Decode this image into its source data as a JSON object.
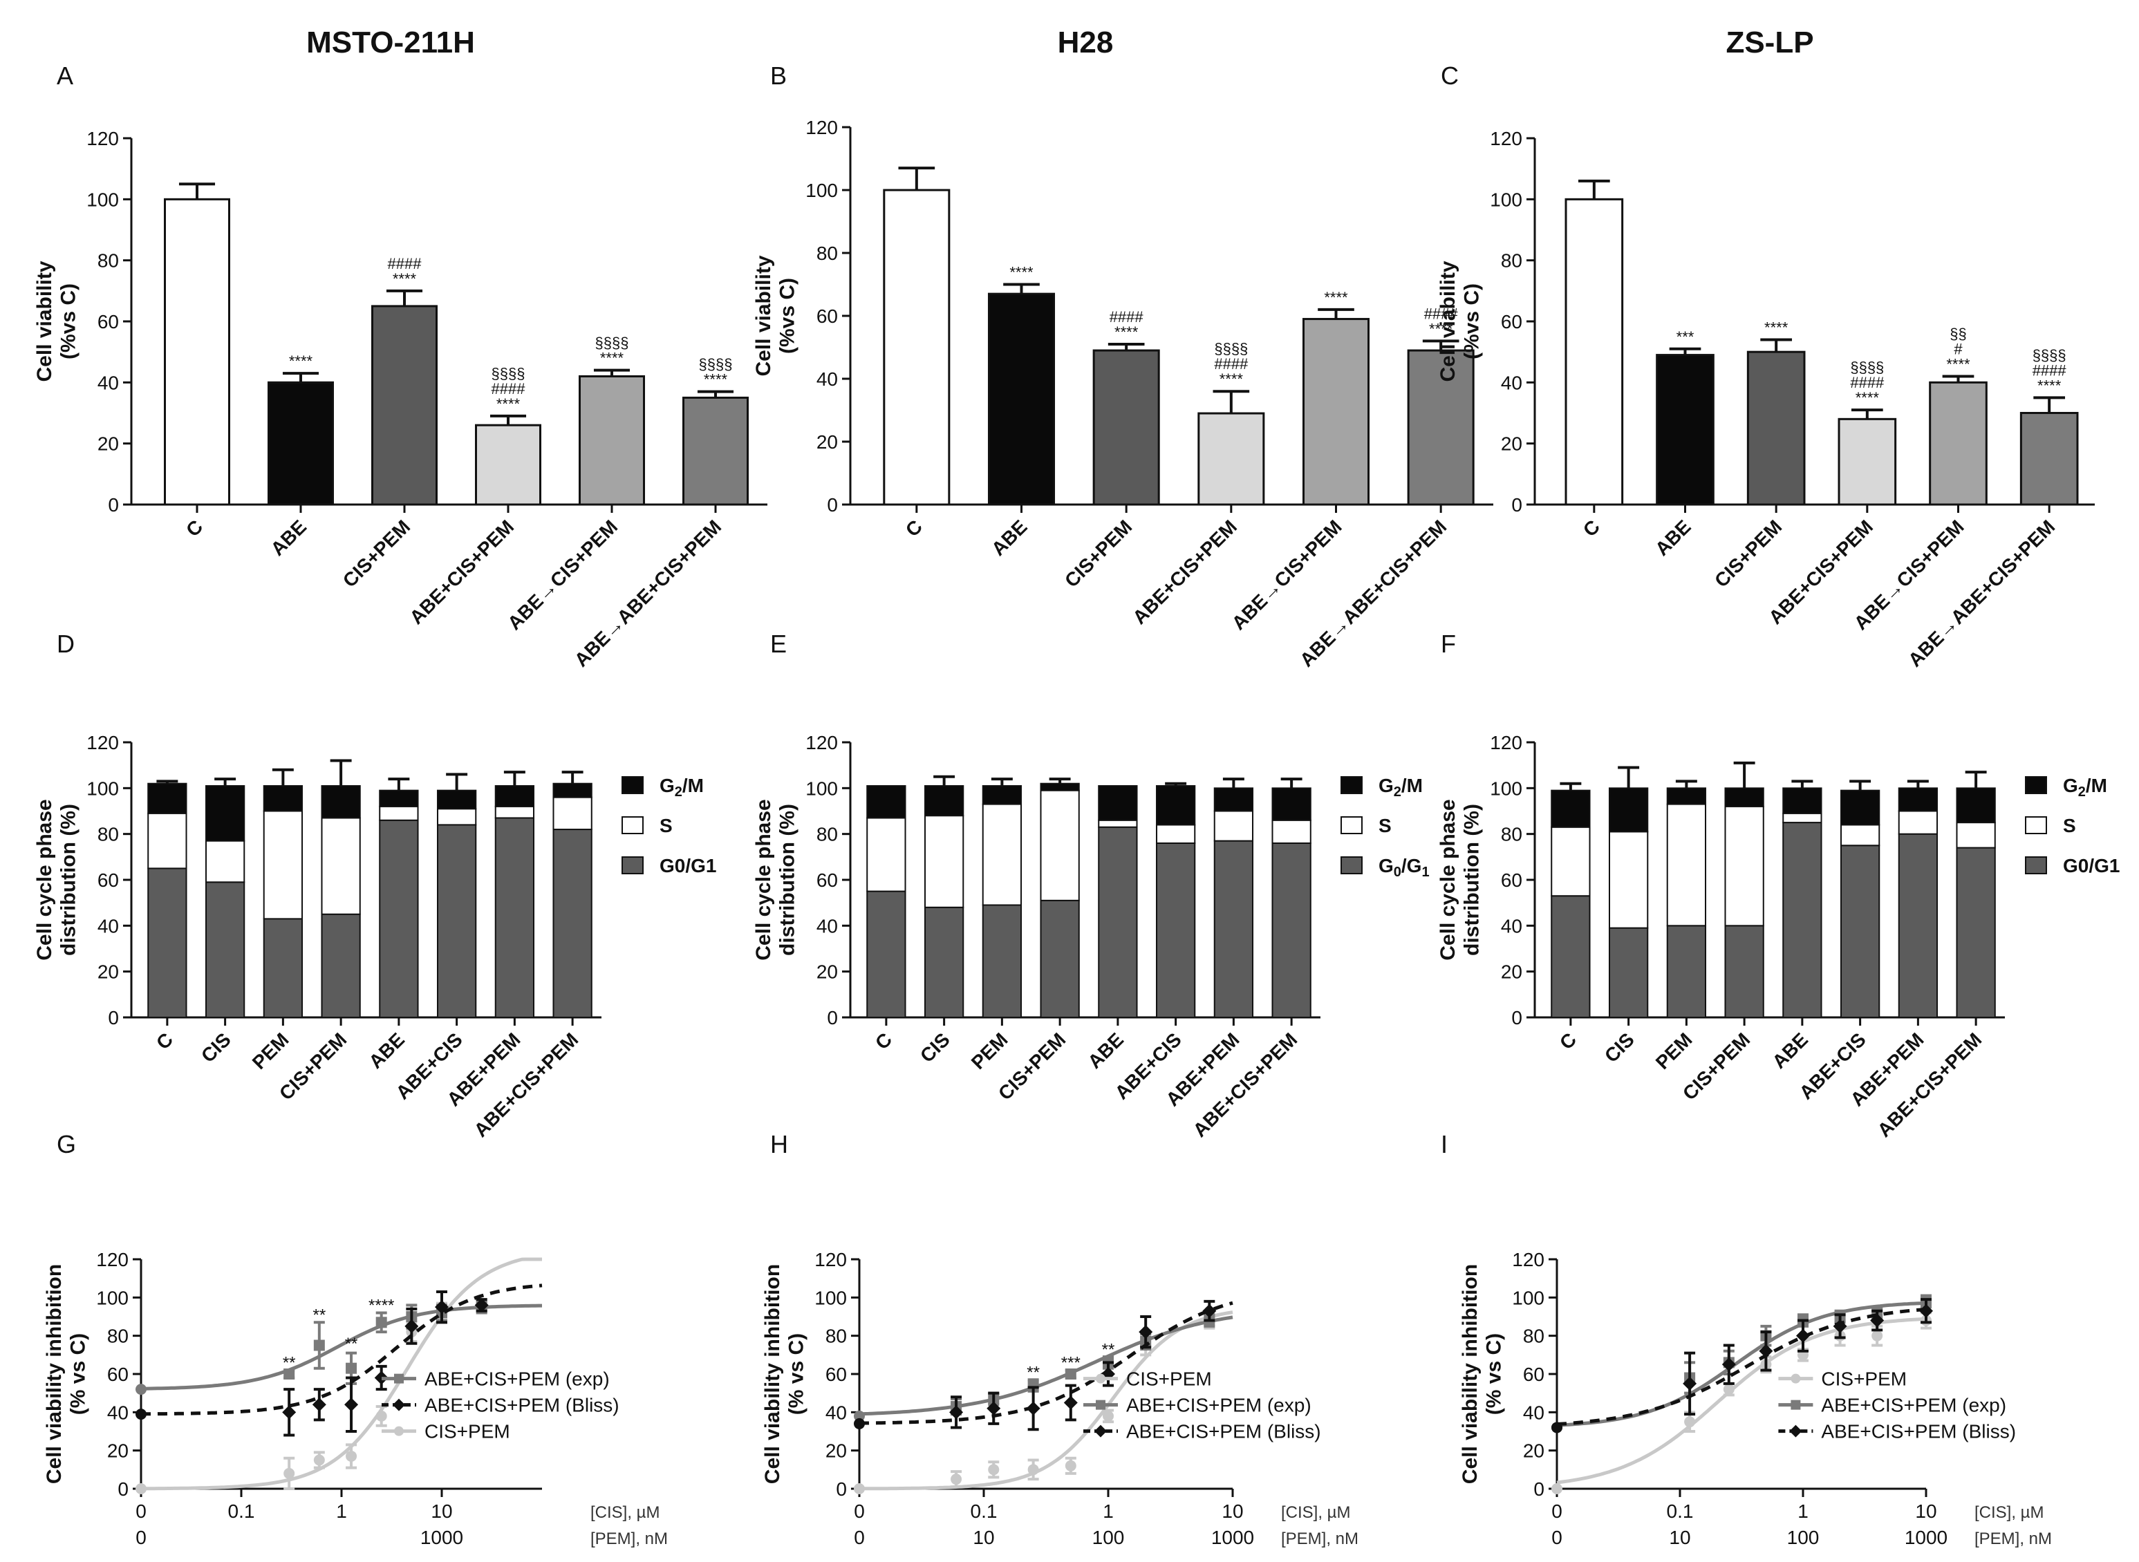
{
  "figure": {
    "columns": [
      "MSTO-211H",
      "H28",
      "ZS-LP"
    ],
    "panel_letters": [
      "A",
      "B",
      "C",
      "D",
      "E",
      "F",
      "G",
      "H",
      "I"
    ]
  },
  "colors": {
    "black": "#0a0a0a",
    "dark_gray": "#5a5a5a",
    "light_gray": "#d8d8d8",
    "mid_gray": "#a4a4a4",
    "gray": "#7c7c7c",
    "white": "#ffffff",
    "g0g1": "#5c5c5c",
    "curve_cis": "#c8c8c8",
    "curve_exp": "#7a7a7a",
    "curve_bliss": "#111111"
  },
  "chart_data": [
    {
      "id": "A",
      "type": "bar",
      "title": "MSTO-211H",
      "ylabel_line1": "Cell viability",
      "ylabel_line2": "(%vs C)",
      "ylim": [
        0,
        120
      ],
      "yticks": [
        "0",
        "20",
        "40",
        "60",
        "80",
        "100",
        "120"
      ],
      "categories": [
        "C",
        "ABE",
        "CIS+PEM",
        "ABE+CIS+PEM",
        "ABE→CIS+PEM",
        "ABE→ABE+CIS+PEM"
      ],
      "values": [
        100,
        40,
        65,
        26,
        42,
        35
      ],
      "errors": [
        5,
        3,
        5,
        3,
        2,
        2
      ],
      "annotations": [
        [],
        [
          "****"
        ],
        [
          "****",
          "####"
        ],
        [
          "****",
          "####",
          "§§§§"
        ],
        [
          "****",
          "§§§§"
        ],
        [
          "****",
          "§§§§"
        ]
      ]
    },
    {
      "id": "B",
      "type": "bar",
      "title": "H28",
      "ylabel_line1": "Cell viability",
      "ylabel_line2": "(%vs C)",
      "ylim": [
        0,
        120
      ],
      "yticks": [
        "0",
        "20",
        "40",
        "60",
        "80",
        "100",
        "120"
      ],
      "categories": [
        "C",
        "ABE",
        "CIS+PEM",
        "ABE+CIS+PEM",
        "ABE→CIS+PEM",
        "ABE→ABE+CIS+PEM"
      ],
      "values": [
        100,
        67,
        49,
        29,
        59,
        49
      ],
      "errors": [
        7,
        3,
        2,
        7,
        3,
        3
      ],
      "annotations": [
        [],
        [
          "****"
        ],
        [
          "****",
          "####"
        ],
        [
          "****",
          "####",
          "§§§§"
        ],
        [
          "****"
        ],
        [
          "****",
          "####"
        ]
      ]
    },
    {
      "id": "C",
      "type": "bar",
      "title": "ZS-LP",
      "ylabel_line1": "Cell viability",
      "ylabel_line2": "(%vs C)",
      "ylim": [
        0,
        120
      ],
      "yticks": [
        "0",
        "20",
        "40",
        "60",
        "80",
        "100",
        "120"
      ],
      "categories": [
        "C",
        "ABE",
        "CIS+PEM",
        "ABE+CIS+PEM",
        "ABE→CIS+PEM",
        "ABE→ABE+CIS+PEM"
      ],
      "values": [
        100,
        49,
        50,
        28,
        40,
        30
      ],
      "errors": [
        6,
        2,
        4,
        3,
        2,
        5
      ],
      "annotations": [
        [],
        [
          "***"
        ],
        [
          "****"
        ],
        [
          "****",
          "####",
          "§§§§"
        ],
        [
          "****",
          "#",
          "§§"
        ],
        [
          "****",
          "####",
          "§§§§"
        ]
      ]
    },
    {
      "id": "D",
      "type": "bar",
      "stacked": true,
      "ylabel_line1": "Cell cycle phase",
      "ylabel_line2": "distribution (%)",
      "ylim": [
        0,
        120
      ],
      "yticks": [
        "0",
        "20",
        "40",
        "60",
        "80",
        "100",
        "120"
      ],
      "categories": [
        "C",
        "CIS",
        "PEM",
        "CIS+PEM",
        "ABE",
        "ABE+CIS",
        "ABE+PEM",
        "ABE+CIS+PEM"
      ],
      "series": [
        {
          "name": "G0/G1",
          "values": [
            65,
            59,
            43,
            45,
            86,
            84,
            87,
            82
          ],
          "errors": [
            1,
            6,
            14,
            9,
            2,
            4,
            2,
            1
          ]
        },
        {
          "name": "S",
          "values": [
            24,
            18,
            47,
            42,
            6,
            7,
            5,
            14
          ],
          "errors": [
            0,
            0,
            0,
            0,
            0,
            0,
            0,
            0
          ]
        },
        {
          "name": "G2/M",
          "values": [
            13,
            24,
            11,
            14,
            7,
            8,
            9,
            6
          ],
          "errors": [
            1,
            3,
            7,
            11,
            5,
            7,
            6,
            5
          ]
        }
      ],
      "legend": [
        {
          "label": "G",
          "sub": "2",
          "suffix": "/M",
          "color": "#0a0a0a"
        },
        {
          "label": "S",
          "sub": "",
          "suffix": "",
          "color": "#ffffff"
        },
        {
          "label": "G0/G1",
          "sub": "",
          "suffix": "",
          "color": "#5c5c5c"
        }
      ]
    },
    {
      "id": "E",
      "type": "bar",
      "stacked": true,
      "ylabel_line1": "Cell cycle phase",
      "ylabel_line2": "distribution (%)",
      "ylim": [
        0,
        120
      ],
      "yticks": [
        "0",
        "20",
        "40",
        "60",
        "80",
        "100",
        "120"
      ],
      "categories": [
        "C",
        "CIS",
        "PEM",
        "CIS+PEM",
        "ABE",
        "ABE+CIS",
        "ABE+PEM",
        "ABE+CIS+PEM"
      ],
      "series": [
        {
          "name": "G0/G1",
          "values": [
            55,
            48,
            49,
            51,
            83,
            76,
            77,
            76
          ],
          "errors": [
            8,
            7,
            0,
            4,
            0,
            7,
            4,
            5
          ]
        },
        {
          "name": "S",
          "values": [
            32,
            40,
            44,
            48,
            3,
            8,
            13,
            10
          ],
          "errors": [
            0,
            0,
            0,
            0,
            0,
            0,
            0,
            0
          ]
        },
        {
          "name": "G2/M",
          "values": [
            14,
            13,
            8,
            3,
            15,
            17,
            10,
            14
          ],
          "errors": [
            0,
            4,
            3,
            2,
            0,
            1,
            4,
            4
          ]
        }
      ],
      "legend": [
        {
          "label": "G",
          "sub": "2",
          "suffix": "/M",
          "color": "#0a0a0a"
        },
        {
          "label": "S",
          "sub": "",
          "suffix": "",
          "color": "#ffffff"
        },
        {
          "label": "G",
          "sub": "0",
          "suffix": "/G",
          "sub2": "1",
          "color": "#5c5c5c"
        }
      ]
    },
    {
      "id": "F",
      "type": "bar",
      "stacked": true,
      "ylabel_line1": "Cell cycle phase",
      "ylabel_line2": "distribution (%)",
      "ylim": [
        0,
        120
      ],
      "yticks": [
        "0",
        "20",
        "40",
        "60",
        "80",
        "100",
        "120"
      ],
      "categories": [
        "C",
        "CIS",
        "PEM",
        "CIS+PEM",
        "ABE",
        "ABE+CIS",
        "ABE+PEM",
        "ABE+CIS+PEM"
      ],
      "series": [
        {
          "name": "G0/G1",
          "values": [
            53,
            39,
            40,
            40,
            85,
            75,
            80,
            74
          ],
          "errors": [
            7,
            7,
            9,
            13,
            0,
            5,
            10,
            5
          ]
        },
        {
          "name": "S",
          "values": [
            30,
            42,
            53,
            52,
            4,
            9,
            10,
            11
          ],
          "errors": [
            0,
            0,
            0,
            0,
            0,
            0,
            0,
            0
          ]
        },
        {
          "name": "G2/M",
          "values": [
            16,
            19,
            7,
            8,
            11,
            15,
            10,
            15
          ],
          "errors": [
            3,
            9,
            3,
            11,
            3,
            4,
            3,
            7
          ]
        }
      ],
      "legend": [
        {
          "label": "G",
          "sub": "2",
          "suffix": "/M",
          "color": "#0a0a0a"
        },
        {
          "label": "S",
          "sub": "",
          "suffix": "",
          "color": "#ffffff"
        },
        {
          "label": "G0/G1",
          "sub": "",
          "suffix": "",
          "color": "#5c5c5c"
        }
      ]
    },
    {
      "id": "G",
      "type": "line",
      "ylabel_line1": "Cell viability inhibition",
      "ylabel_line2": "(% vs C)",
      "ylim": [
        0,
        120
      ],
      "yticks": [
        "0",
        "20",
        "40",
        "60",
        "80",
        "100",
        "120"
      ],
      "xaxis1": {
        "ticks": [
          "0",
          "0.1",
          "1",
          "10"
        ],
        "label": "[CIS], µM",
        "min": 0.01,
        "max": 100
      },
      "xaxis2": {
        "ticks": [
          "0",
          "1000"
        ],
        "label": "[PEM], nM"
      },
      "legend_order": [
        "exp",
        "bliss",
        "cis"
      ],
      "series": [
        {
          "key": "cis",
          "name": "CIS+PEM",
          "x": [
            0.3,
            0.6,
            1.25,
            2.5,
            5,
            10,
            25
          ],
          "y": [
            8,
            15,
            17,
            38,
            82,
            92,
            96
          ],
          "err": [
            8,
            4,
            6,
            5,
            5,
            5,
            3
          ],
          "curve": {
            "bottom": 0,
            "top": 125,
            "ec50": 4.5,
            "hill": 1.2
          }
        },
        {
          "key": "exp",
          "name": "ABE+CIS+PEM (exp)",
          "x": [
            0.3,
            0.6,
            1.25,
            2.5,
            5,
            10,
            25
          ],
          "y": [
            60,
            75,
            63,
            87,
            90,
            92,
            95
          ],
          "err": [
            2,
            12,
            8,
            5,
            6,
            4,
            3
          ],
          "curve": {
            "bottom": 52,
            "top": 96,
            "ec50": 0.9,
            "hill": 1.1
          }
        },
        {
          "key": "bliss",
          "name": "ABE+CIS+PEM (Bliss)",
          "x": [
            0.3,
            0.6,
            1.25,
            2.5,
            5,
            10,
            25
          ],
          "y": [
            40,
            44,
            44,
            58,
            85,
            95,
            96
          ],
          "err": [
            12,
            8,
            14,
            6,
            9,
            8,
            3
          ],
          "curve": {
            "bottom": 39,
            "top": 108,
            "ec50": 3.5,
            "hill": 1.1
          }
        }
      ],
      "annotations": [
        {
          "x": 0.3,
          "y": 63,
          "text": "**"
        },
        {
          "x": 0.6,
          "y": 88,
          "text": "**"
        },
        {
          "x": 1.25,
          "y": 73,
          "text": "**"
        },
        {
          "x": 2.5,
          "y": 93,
          "text": "****"
        }
      ]
    },
    {
      "id": "H",
      "type": "line",
      "ylabel_line1": "Cell viability inhibition",
      "ylabel_line2": "(% vs C)",
      "ylim": [
        0,
        120
      ],
      "yticks": [
        "0",
        "20",
        "40",
        "60",
        "80",
        "100",
        "120"
      ],
      "xaxis1": {
        "ticks": [
          "0",
          "0.1",
          "1",
          "10"
        ],
        "label": "[CIS], µM",
        "min": 0.01,
        "max": 10
      },
      "xaxis2": {
        "ticks": [
          "0",
          "10",
          "100",
          "1000"
        ],
        "label": "[PEM], nM"
      },
      "legend_order": [
        "cis",
        "exp",
        "bliss"
      ],
      "series": [
        {
          "key": "cis",
          "name": "CIS+PEM",
          "x": [
            0.06,
            0.12,
            0.25,
            0.5,
            1,
            2,
            6.5
          ],
          "y": [
            5,
            10,
            10,
            12,
            38,
            75,
            88
          ],
          "err": [
            4,
            4,
            5,
            4,
            3,
            5,
            4
          ],
          "curve": {
            "bottom": 0,
            "top": 95,
            "ec50": 1.1,
            "hill": 1.6
          }
        },
        {
          "key": "exp",
          "name": "ABE+CIS+PEM (exp)",
          "x": [
            0.06,
            0.12,
            0.25,
            0.5,
            1,
            2,
            6.5
          ],
          "y": [
            43,
            47,
            54,
            60,
            66,
            77,
            88
          ],
          "err": [
            4,
            3,
            3,
            2,
            3,
            4,
            3
          ],
          "curve": {
            "bottom": 38,
            "top": 95,
            "ec50": 0.8,
            "hill": 0.9
          }
        },
        {
          "key": "bliss",
          "name": "ABE+CIS+PEM (Bliss)",
          "x": [
            0.06,
            0.12,
            0.25,
            0.5,
            1,
            2,
            6.5
          ],
          "y": [
            40,
            42,
            42,
            45,
            60,
            82,
            93
          ],
          "err": [
            8,
            8,
            11,
            9,
            6,
            8,
            5
          ],
          "curve": {
            "bottom": 34,
            "top": 105,
            "ec50": 1.5,
            "hill": 1.1
          }
        }
      ],
      "annotations": [
        {
          "x": 0.25,
          "y": 58,
          "text": "**"
        },
        {
          "x": 0.5,
          "y": 63,
          "text": "***"
        },
        {
          "x": 1,
          "y": 70,
          "text": "**"
        }
      ]
    },
    {
      "id": "I",
      "type": "line",
      "ylabel_line1": "Cell viability inhibition",
      "ylabel_line2": "(% vs C)",
      "ylim": [
        0,
        120
      ],
      "yticks": [
        "0",
        "20",
        "40",
        "60",
        "80",
        "100",
        "120"
      ],
      "xaxis1": {
        "ticks": [
          "0",
          "0.1",
          "1",
          "10"
        ],
        "label": "[CIS], µM",
        "min": 0.01,
        "max": 10
      },
      "xaxis2": {
        "ticks": [
          "0",
          "10",
          "100",
          "1000"
        ],
        "label": "[PEM], nM"
      },
      "legend_order": [
        "cis",
        "exp",
        "bliss"
      ],
      "series": [
        {
          "key": "cis",
          "name": "CIS+PEM",
          "x": [
            0.12,
            0.25,
            0.5,
            1,
            2,
            4,
            10
          ],
          "y": [
            35,
            52,
            65,
            70,
            80,
            80,
            88
          ],
          "err": [
            5,
            3,
            4,
            3,
            5,
            5,
            4
          ],
          "curve": {
            "bottom": 0,
            "top": 90,
            "ec50": 0.2,
            "hill": 1.1
          }
        },
        {
          "key": "exp",
          "name": "ABE+CIS+PEM (exp)",
          "x": [
            0.12,
            0.25,
            0.5,
            1,
            2,
            4,
            10
          ],
          "y": [
            58,
            66,
            80,
            88,
            90,
            92,
            98
          ],
          "err": [
            8,
            6,
            5,
            3,
            3,
            3,
            3
          ],
          "curve": {
            "bottom": 32,
            "top": 98,
            "ec50": 0.28,
            "hill": 1.2
          }
        },
        {
          "key": "bliss",
          "name": "ABE+CIS+PEM (Bliss)",
          "x": [
            0.12,
            0.25,
            0.5,
            1,
            2,
            4,
            10
          ],
          "y": [
            55,
            65,
            72,
            80,
            85,
            88,
            93
          ],
          "err": [
            16,
            10,
            10,
            8,
            6,
            5,
            6
          ],
          "curve": {
            "bottom": 32,
            "top": 96,
            "ec50": 0.35,
            "hill": 1.0
          }
        }
      ],
      "annotations": []
    }
  ]
}
